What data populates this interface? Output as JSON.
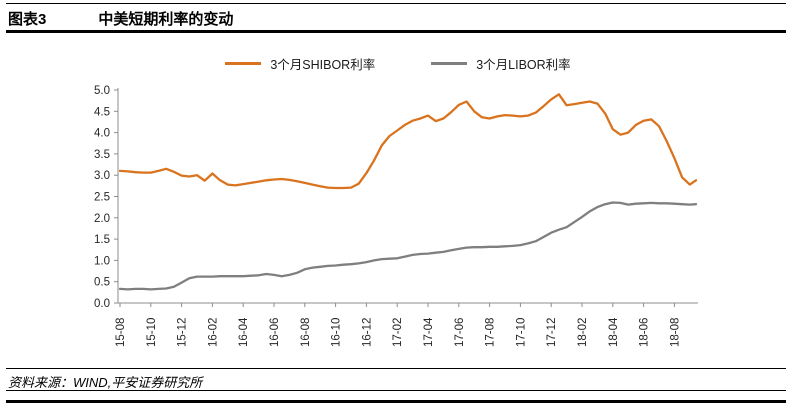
{
  "header": {
    "tag": "图表3",
    "title": "中美短期利率的变动"
  },
  "legend": {
    "items": [
      {
        "label": "3个月SHIBOR利率",
        "color": "#D9731E"
      },
      {
        "label": "3个月LIBOR利率",
        "color": "#7F7F7F"
      }
    ]
  },
  "source": {
    "text": "资料来源：WIND,平安证券研究所"
  },
  "colors": {
    "shibor_line": "#D9731E",
    "libor_line": "#7F7F7F",
    "axis": "#8C8C8C",
    "tick_text": "#262626",
    "rule": "#000000"
  },
  "chart_data": {
    "type": "line",
    "title": "中美短期利率的变动",
    "xlabel": "",
    "ylabel": "",
    "ylim": [
      0.0,
      5.0
    ],
    "grid": false,
    "legend_position": "top",
    "x_unit": "months since 2015-08 (0 = 15-08)",
    "x_tick_labels": [
      "15-08",
      "15-10",
      "15-12",
      "16-02",
      "16-04",
      "16-06",
      "16-08",
      "16-10",
      "16-12",
      "17-02",
      "17-04",
      "17-06",
      "17-08",
      "17-10",
      "17-12",
      "18-02",
      "18-04",
      "18-06",
      "18-08"
    ],
    "x_tick_months": [
      0,
      2,
      4,
      6,
      8,
      10,
      12,
      14,
      16,
      18,
      20,
      22,
      24,
      26,
      28,
      30,
      32,
      34,
      36
    ],
    "y_ticks": [
      0.0,
      0.5,
      1.0,
      1.5,
      2.0,
      2.5,
      3.0,
      3.5,
      4.0,
      4.5,
      5.0
    ],
    "x": [
      0,
      0.5,
      1,
      1.5,
      2,
      2.5,
      3,
      3.5,
      4,
      4.5,
      5,
      5.5,
      6,
      6.5,
      7,
      7.5,
      8,
      8.5,
      9,
      9.5,
      10,
      10.5,
      11,
      11.5,
      12,
      12.5,
      13,
      13.5,
      14,
      14.5,
      15,
      15.5,
      16,
      16.5,
      17,
      17.5,
      18,
      18.5,
      19,
      19.5,
      20,
      20.5,
      21,
      21.5,
      22,
      22.5,
      23,
      23.5,
      24,
      24.5,
      25,
      25.5,
      26,
      26.5,
      27,
      27.5,
      28,
      28.5,
      29,
      29.5,
      30,
      30.5,
      31,
      31.5,
      32,
      32.5,
      33,
      33.5,
      34,
      34.5,
      35,
      35.5,
      36,
      36.5,
      37,
      37.4
    ],
    "series": [
      {
        "name": "3个月SHIBOR利率",
        "color": "#D9731E",
        "values": [
          3.1,
          3.09,
          3.07,
          3.06,
          3.06,
          3.1,
          3.15,
          3.08,
          2.99,
          2.97,
          3.0,
          2.87,
          3.04,
          2.88,
          2.78,
          2.76,
          2.79,
          2.82,
          2.85,
          2.88,
          2.9,
          2.91,
          2.89,
          2.86,
          2.82,
          2.78,
          2.74,
          2.71,
          2.7,
          2.7,
          2.71,
          2.8,
          3.05,
          3.35,
          3.7,
          3.92,
          4.05,
          4.18,
          4.28,
          4.33,
          4.4,
          4.27,
          4.33,
          4.48,
          4.65,
          4.73,
          4.5,
          4.36,
          4.33,
          4.38,
          4.41,
          4.4,
          4.38,
          4.4,
          4.47,
          4.62,
          4.78,
          4.9,
          4.64,
          4.67,
          4.7,
          4.73,
          4.68,
          4.45,
          4.08,
          3.95,
          4.0,
          4.18,
          4.28,
          4.31,
          4.15,
          3.8,
          3.4,
          2.95,
          2.78,
          2.88
        ]
      },
      {
        "name": "3个月LIBOR利率",
        "color": "#7F7F7F",
        "values": [
          0.33,
          0.32,
          0.33,
          0.33,
          0.32,
          0.33,
          0.34,
          0.38,
          0.48,
          0.58,
          0.62,
          0.62,
          0.62,
          0.63,
          0.63,
          0.63,
          0.63,
          0.64,
          0.65,
          0.68,
          0.66,
          0.63,
          0.66,
          0.71,
          0.79,
          0.83,
          0.85,
          0.87,
          0.88,
          0.9,
          0.91,
          0.93,
          0.96,
          1.0,
          1.03,
          1.04,
          1.05,
          1.09,
          1.13,
          1.15,
          1.16,
          1.18,
          1.2,
          1.24,
          1.27,
          1.3,
          1.31,
          1.31,
          1.32,
          1.32,
          1.33,
          1.34,
          1.36,
          1.4,
          1.45,
          1.55,
          1.65,
          1.72,
          1.78,
          1.9,
          2.02,
          2.15,
          2.25,
          2.32,
          2.36,
          2.35,
          2.31,
          2.33,
          2.34,
          2.35,
          2.34,
          2.34,
          2.33,
          2.32,
          2.31,
          2.32
        ]
      }
    ]
  }
}
